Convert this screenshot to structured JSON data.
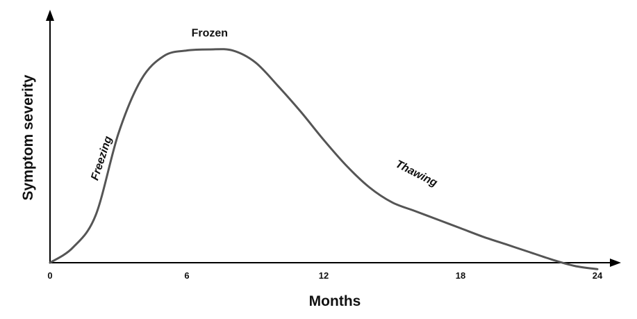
{
  "chart_data": {
    "type": "line",
    "xlabel": "Months",
    "ylabel": "Symptom severity",
    "xlim": [
      0,
      24
    ],
    "ylim": [
      0,
      100
    ],
    "x_ticks": [
      "0",
      "6",
      "12",
      "18",
      "24"
    ],
    "grid": false,
    "series": [
      {
        "x": [
          0,
          1,
          2,
          3,
          4,
          5,
          6,
          7,
          8,
          9,
          10,
          11,
          12,
          13,
          14,
          15,
          16,
          17,
          18,
          19,
          20,
          21,
          22,
          23,
          24
        ],
        "y": [
          0,
          7,
          22,
          60,
          85,
          96,
          98.5,
          99,
          98.5,
          93,
          82,
          70,
          57,
          45,
          35,
          28,
          24,
          20,
          16,
          12,
          8.5,
          5,
          1.5,
          -1.5,
          -3
        ]
      }
    ],
    "annotations": [
      {
        "text": "Freezing",
        "x": 2.4,
        "y": 48
      },
      {
        "text": "Frozen",
        "x": 7,
        "y": 105
      },
      {
        "text": "Thawing",
        "x": 16,
        "y": 40
      }
    ],
    "colors": {
      "axis": "#000000",
      "curve": "#555555",
      "text": "#111111"
    }
  }
}
